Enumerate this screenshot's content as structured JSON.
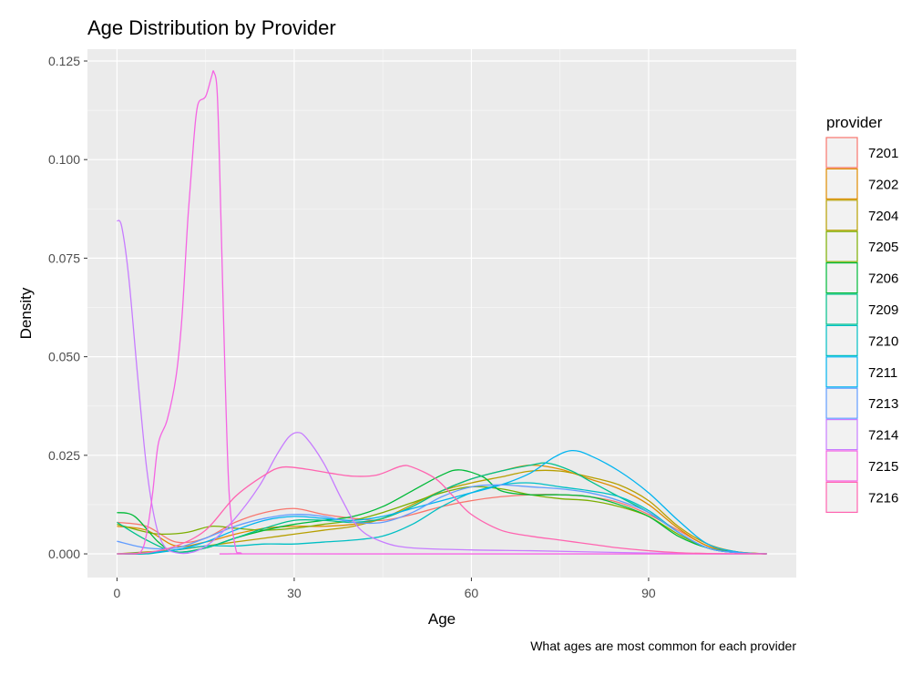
{
  "chart_data": {
    "type": "line",
    "title": "Age Distribution by Provider",
    "xlabel": "Age",
    "ylabel": "Density",
    "caption": "What ages are most common for each provider",
    "xlim": [
      -5,
      115
    ],
    "ylim": [
      -0.006,
      0.128
    ],
    "x_ticks": [
      0,
      30,
      60,
      90
    ],
    "x_tick_labels": [
      "0",
      "30",
      "60",
      "90"
    ],
    "y_ticks": [
      0,
      0.025,
      0.05,
      0.075,
      0.1,
      0.125
    ],
    "y_tick_labels": [
      "0.000",
      "0.025",
      "0.050",
      "0.075",
      "0.100",
      "0.125"
    ],
    "grid": true,
    "legend_title": "provider",
    "legend_position": "right",
    "series": [
      {
        "name": "7201",
        "color": "#F8766D",
        "points": [
          [
            0,
            0.008
          ],
          [
            5,
            0.007
          ],
          [
            10,
            0.003
          ],
          [
            15,
            0.004
          ],
          [
            20,
            0.008
          ],
          [
            25,
            0.0105
          ],
          [
            30,
            0.0115
          ],
          [
            35,
            0.01
          ],
          [
            40,
            0.009
          ],
          [
            45,
            0.0085
          ],
          [
            50,
            0.01
          ],
          [
            55,
            0.012
          ],
          [
            60,
            0.0135
          ],
          [
            65,
            0.0145
          ],
          [
            70,
            0.015
          ],
          [
            75,
            0.015
          ],
          [
            80,
            0.0145
          ],
          [
            85,
            0.013
          ],
          [
            90,
            0.01
          ],
          [
            95,
            0.006
          ],
          [
            100,
            0.002
          ],
          [
            105,
            0.0005
          ],
          [
            110,
            0.0
          ]
        ]
      },
      {
        "name": "7202",
        "color": "#DE8C00",
        "points": [
          [
            0,
            0.007
          ],
          [
            5,
            0.006
          ],
          [
            10,
            0.002
          ],
          [
            15,
            0.003
          ],
          [
            20,
            0.005
          ],
          [
            25,
            0.0065
          ],
          [
            30,
            0.007
          ],
          [
            35,
            0.007
          ],
          [
            40,
            0.0075
          ],
          [
            45,
            0.009
          ],
          [
            50,
            0.012
          ],
          [
            55,
            0.016
          ],
          [
            60,
            0.019
          ],
          [
            65,
            0.021
          ],
          [
            70,
            0.0225
          ],
          [
            75,
            0.0215
          ],
          [
            80,
            0.019
          ],
          [
            85,
            0.0165
          ],
          [
            90,
            0.0125
          ],
          [
            95,
            0.0065
          ],
          [
            100,
            0.002
          ],
          [
            105,
            0.0005
          ],
          [
            110,
            0.0
          ]
        ]
      },
      {
        "name": "7204",
        "color": "#B79F00",
        "points": [
          [
            0,
            0.0
          ],
          [
            5,
            0.0005
          ],
          [
            10,
            0.001
          ],
          [
            15,
            0.002
          ],
          [
            20,
            0.003
          ],
          [
            25,
            0.004
          ],
          [
            30,
            0.005
          ],
          [
            35,
            0.006
          ],
          [
            40,
            0.007
          ],
          [
            45,
            0.009
          ],
          [
            50,
            0.0125
          ],
          [
            55,
            0.016
          ],
          [
            60,
            0.018
          ],
          [
            65,
            0.0195
          ],
          [
            70,
            0.021
          ],
          [
            75,
            0.021
          ],
          [
            80,
            0.0195
          ],
          [
            85,
            0.0175
          ],
          [
            90,
            0.0135
          ],
          [
            95,
            0.007
          ],
          [
            100,
            0.0025
          ],
          [
            105,
            0.0005
          ],
          [
            110,
            0.0
          ]
        ]
      },
      {
        "name": "7205",
        "color": "#7CAE00",
        "points": [
          [
            0,
            0.0075
          ],
          [
            5,
            0.0055
          ],
          [
            8,
            0.005
          ],
          [
            12,
            0.0055
          ],
          [
            16,
            0.007
          ],
          [
            20,
            0.0065
          ],
          [
            25,
            0.006
          ],
          [
            30,
            0.0065
          ],
          [
            35,
            0.0075
          ],
          [
            40,
            0.0085
          ],
          [
            45,
            0.0105
          ],
          [
            50,
            0.013
          ],
          [
            55,
            0.0155
          ],
          [
            60,
            0.017
          ],
          [
            65,
            0.0165
          ],
          [
            70,
            0.015
          ],
          [
            75,
            0.014
          ],
          [
            80,
            0.0135
          ],
          [
            85,
            0.012
          ],
          [
            90,
            0.0095
          ],
          [
            95,
            0.005
          ],
          [
            100,
            0.0015
          ],
          [
            105,
            0.0003
          ],
          [
            110,
            0.0
          ]
        ]
      },
      {
        "name": "7206",
        "color": "#00BA38",
        "points": [
          [
            0,
            0.0105
          ],
          [
            3,
            0.0095
          ],
          [
            7,
            0.003
          ],
          [
            10,
            0.0005
          ],
          [
            15,
            0.0015
          ],
          [
            20,
            0.004
          ],
          [
            25,
            0.006
          ],
          [
            30,
            0.0075
          ],
          [
            35,
            0.0085
          ],
          [
            40,
            0.0095
          ],
          [
            45,
            0.012
          ],
          [
            50,
            0.016
          ],
          [
            55,
            0.02
          ],
          [
            58,
            0.0213
          ],
          [
            62,
            0.0195
          ],
          [
            65,
            0.016
          ],
          [
            70,
            0.015
          ],
          [
            75,
            0.015
          ],
          [
            80,
            0.0145
          ],
          [
            85,
            0.0125
          ],
          [
            90,
            0.0095
          ],
          [
            95,
            0.0045
          ],
          [
            100,
            0.0015
          ],
          [
            105,
            0.0003
          ],
          [
            110,
            0.0
          ]
        ]
      },
      {
        "name": "7209",
        "color": "#00C08B",
        "points": [
          [
            0,
            0.008
          ],
          [
            5,
            0.0035
          ],
          [
            10,
            0.0005
          ],
          [
            15,
            0.0015
          ],
          [
            20,
            0.004
          ],
          [
            25,
            0.0065
          ],
          [
            30,
            0.0085
          ],
          [
            35,
            0.0085
          ],
          [
            40,
            0.008
          ],
          [
            45,
            0.009
          ],
          [
            50,
            0.012
          ],
          [
            55,
            0.016
          ],
          [
            60,
            0.019
          ],
          [
            65,
            0.021
          ],
          [
            70,
            0.0225
          ],
          [
            73,
            0.023
          ],
          [
            77,
            0.021
          ],
          [
            80,
            0.0185
          ],
          [
            85,
            0.0145
          ],
          [
            90,
            0.0105
          ],
          [
            95,
            0.0055
          ],
          [
            100,
            0.0015
          ],
          [
            105,
            0.0003
          ],
          [
            110,
            0.0
          ]
        ]
      },
      {
        "name": "7210",
        "color": "#00BFC4",
        "points": [
          [
            0,
            0.0
          ],
          [
            5,
            0.0
          ],
          [
            10,
            0.001
          ],
          [
            15,
            0.002
          ],
          [
            20,
            0.002
          ],
          [
            25,
            0.0025
          ],
          [
            30,
            0.0025
          ],
          [
            35,
            0.003
          ],
          [
            40,
            0.0035
          ],
          [
            45,
            0.0045
          ],
          [
            50,
            0.0075
          ],
          [
            55,
            0.012
          ],
          [
            60,
            0.0155
          ],
          [
            65,
            0.0175
          ],
          [
            70,
            0.018
          ],
          [
            75,
            0.017
          ],
          [
            80,
            0.016
          ],
          [
            85,
            0.0145
          ],
          [
            90,
            0.011
          ],
          [
            95,
            0.0055
          ],
          [
            100,
            0.0015
          ],
          [
            105,
            0.0003
          ],
          [
            110,
            0.0
          ]
        ]
      },
      {
        "name": "7211",
        "color": "#00B4F0",
        "points": [
          [
            0,
            0.0
          ],
          [
            5,
            0.0003
          ],
          [
            10,
            0.001
          ],
          [
            15,
            0.003
          ],
          [
            20,
            0.006
          ],
          [
            25,
            0.0085
          ],
          [
            30,
            0.0095
          ],
          [
            35,
            0.009
          ],
          [
            40,
            0.0085
          ],
          [
            45,
            0.0095
          ],
          [
            50,
            0.0115
          ],
          [
            55,
            0.0135
          ],
          [
            60,
            0.0155
          ],
          [
            65,
            0.0175
          ],
          [
            70,
            0.0205
          ],
          [
            74,
            0.0245
          ],
          [
            77,
            0.0262
          ],
          [
            80,
            0.025
          ],
          [
            85,
            0.021
          ],
          [
            90,
            0.0155
          ],
          [
            95,
            0.0085
          ],
          [
            100,
            0.0025
          ],
          [
            105,
            0.0005
          ],
          [
            110,
            0.0
          ]
        ]
      },
      {
        "name": "7213",
        "color": "#619CFF",
        "points": [
          [
            0,
            0.0032
          ],
          [
            5,
            0.0015
          ],
          [
            10,
            0.0015
          ],
          [
            15,
            0.004
          ],
          [
            20,
            0.007
          ],
          [
            25,
            0.009
          ],
          [
            30,
            0.01
          ],
          [
            35,
            0.0095
          ],
          [
            40,
            0.008
          ],
          [
            45,
            0.008
          ],
          [
            50,
            0.0105
          ],
          [
            55,
            0.0145
          ],
          [
            60,
            0.017
          ],
          [
            65,
            0.0175
          ],
          [
            70,
            0.017
          ],
          [
            75,
            0.0165
          ],
          [
            80,
            0.0155
          ],
          [
            85,
            0.0135
          ],
          [
            90,
            0.0105
          ],
          [
            95,
            0.0055
          ],
          [
            100,
            0.0015
          ],
          [
            105,
            0.0003
          ],
          [
            110,
            0.0
          ]
        ]
      },
      {
        "name": "7214",
        "color": "#C77CFF",
        "points": [
          [
            0,
            0.0845
          ],
          [
            0.8,
            0.083
          ],
          [
            2,
            0.07
          ],
          [
            3.5,
            0.045
          ],
          [
            5,
            0.022
          ],
          [
            6.5,
            0.008
          ],
          [
            8,
            0.002
          ],
          [
            10,
            0.0003
          ],
          [
            13,
            0.0005
          ],
          [
            16,
            0.003
          ],
          [
            20,
            0.009
          ],
          [
            24,
            0.017
          ],
          [
            27,
            0.025
          ],
          [
            29,
            0.0295
          ],
          [
            30.5,
            0.0308
          ],
          [
            32,
            0.0295
          ],
          [
            35,
            0.023
          ],
          [
            38,
            0.014
          ],
          [
            41,
            0.0065
          ],
          [
            45,
            0.003
          ],
          [
            50,
            0.0015
          ],
          [
            60,
            0.001
          ],
          [
            70,
            0.0008
          ],
          [
            80,
            0.0005
          ],
          [
            90,
            0.0002
          ],
          [
            100,
            0.0
          ],
          [
            110,
            0.0
          ]
        ]
      },
      {
        "name": "7215",
        "color": "#F564E3",
        "points": [
          [
            2,
            0.0
          ],
          [
            4,
            0.0005
          ],
          [
            5,
            0.005
          ],
          [
            6,
            0.015
          ],
          [
            7,
            0.028
          ],
          [
            8.5,
            0.034
          ],
          [
            10,
            0.045
          ],
          [
            11,
            0.06
          ],
          [
            12,
            0.085
          ],
          [
            13,
            0.105
          ],
          [
            13.7,
            0.114
          ],
          [
            15,
            0.116
          ],
          [
            16,
            0.121
          ],
          [
            16.4,
            0.1222
          ],
          [
            17,
            0.116
          ],
          [
            17.6,
            0.085
          ],
          [
            18.3,
            0.045
          ],
          [
            19,
            0.015
          ],
          [
            20,
            0.002
          ],
          [
            21,
            0.0002
          ],
          [
            25,
            0.0
          ],
          [
            110,
            0.0
          ]
        ]
      },
      {
        "name": "7216",
        "color": "#FF64B0",
        "points": [
          [
            0,
            0.0
          ],
          [
            5,
            0.0003
          ],
          [
            10,
            0.002
          ],
          [
            15,
            0.006
          ],
          [
            20,
            0.0145
          ],
          [
            25,
            0.02
          ],
          [
            28,
            0.022
          ],
          [
            32,
            0.0215
          ],
          [
            36,
            0.0205
          ],
          [
            40,
            0.0197
          ],
          [
            44,
            0.02
          ],
          [
            48,
            0.0222
          ],
          [
            50,
            0.022
          ],
          [
            54,
            0.019
          ],
          [
            57,
            0.0145
          ],
          [
            60,
            0.01
          ],
          [
            65,
            0.006
          ],
          [
            70,
            0.0045
          ],
          [
            75,
            0.0035
          ],
          [
            80,
            0.0025
          ],
          [
            85,
            0.0015
          ],
          [
            90,
            0.0008
          ],
          [
            95,
            0.0003
          ],
          [
            100,
            0.0001
          ],
          [
            110,
            0.0
          ]
        ]
      }
    ]
  }
}
